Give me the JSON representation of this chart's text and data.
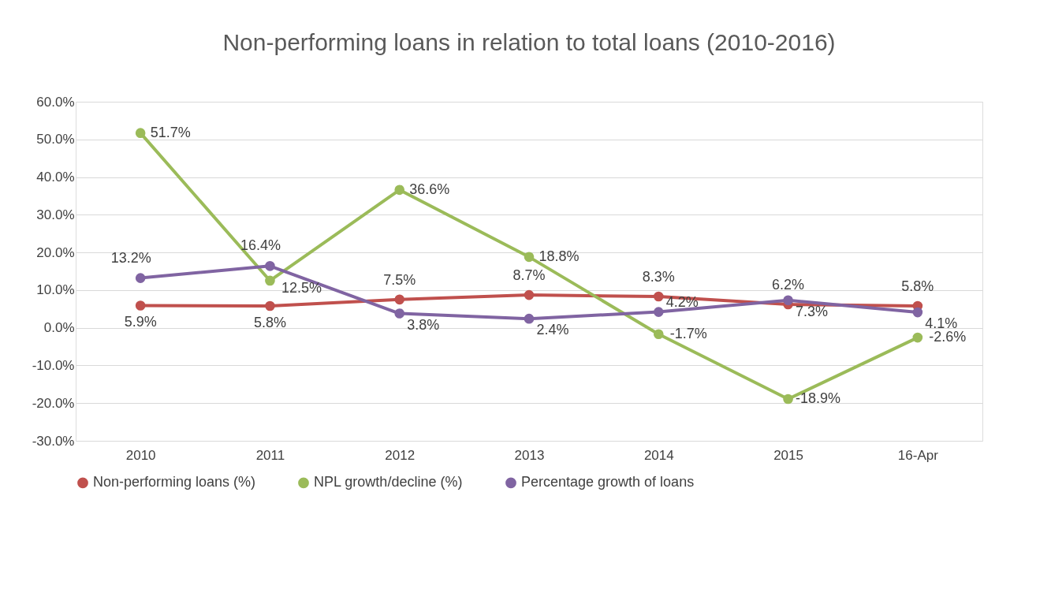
{
  "chart_data": {
    "type": "line",
    "title": "Non-performing loans in relation to total loans (2010-2016)",
    "categories": [
      "2010",
      "2011",
      "2012",
      "2013",
      "2014",
      "2015",
      "16-Apr"
    ],
    "series": [
      {
        "name": "Non-performing loans (%)",
        "color": "#c0504d",
        "values": [
          5.9,
          5.8,
          7.5,
          8.7,
          8.3,
          6.2,
          5.8
        ],
        "value_labels": [
          "5.9%",
          "5.8%",
          "7.5%",
          "8.7%",
          "8.3%",
          "6.2%",
          "5.8%"
        ]
      },
      {
        "name": "NPL growth/decline (%)",
        "color": "#9bbb59",
        "values": [
          51.7,
          12.5,
          36.6,
          18.8,
          -1.7,
          -18.9,
          -2.6
        ],
        "value_labels": [
          "51.7%",
          "12.5%",
          "36.6%",
          "18.8%",
          "-1.7%",
          "-18.9%",
          "-2.6%"
        ]
      },
      {
        "name": "Percentage growth of loans",
        "color": "#8064a2",
        "values": [
          13.2,
          16.4,
          3.8,
          2.4,
          4.2,
          7.3,
          4.1
        ],
        "value_labels": [
          "13.2%",
          "16.4%",
          "3.8%",
          "2.4%",
          "4.2%",
          "7.3%",
          "4.1%"
        ]
      }
    ],
    "ylim": [
      -30,
      60
    ],
    "yticks": [
      {
        "value": -30,
        "label": "-30.0%"
      },
      {
        "value": -20,
        "label": "-20.0%"
      },
      {
        "value": -10,
        "label": "-10.0%"
      },
      {
        "value": 0,
        "label": "0.0%"
      },
      {
        "value": 10,
        "label": "10.0%"
      },
      {
        "value": 20,
        "label": "20.0%"
      },
      {
        "value": 30,
        "label": "30.0%"
      },
      {
        "value": 40,
        "label": "40.0%"
      },
      {
        "value": 50,
        "label": "50.0%"
      },
      {
        "value": 60,
        "label": "60.0%"
      }
    ],
    "grid": "y",
    "legend": "bottom",
    "marker": "circle",
    "line_style": "solid"
  }
}
